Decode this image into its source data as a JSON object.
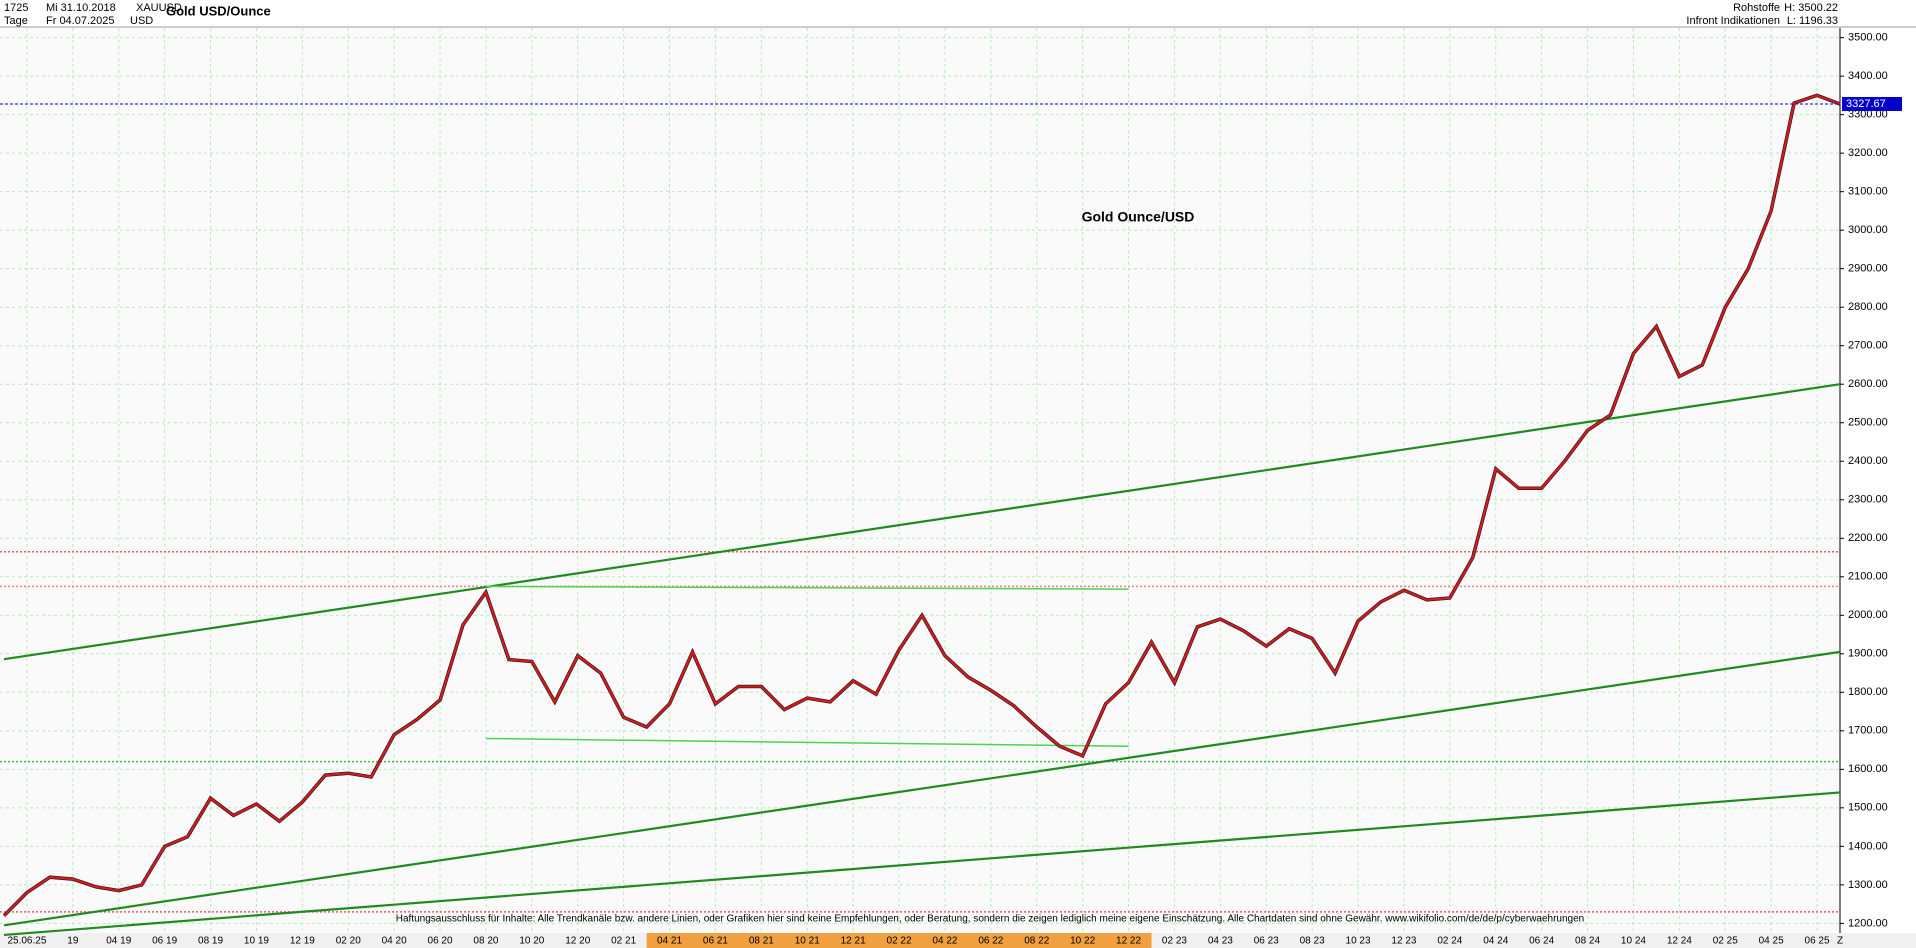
{
  "header": {
    "count": "1725",
    "start_date": "Mi 31.10.2018",
    "symbol": "XAUUSD",
    "name": "Gold USD/Ounce",
    "period": "Tage",
    "end_date": "Fr 04.07.2025",
    "currency": "USD",
    "group": "Rohstoffe",
    "source": "Infront Indikationen",
    "high": "H: 3500.22",
    "low": "L: 1196.33"
  },
  "chart_data": {
    "type": "line",
    "annotation": "Gold Ounce/USD",
    "disclaimer": "Haftungsausschluss für Inhalte: Alle Trendkanäle bzw. andere Linien, oder Grafiken hier sind keine Empfehlungen, oder Beratung, sondern die zeigen lediglich meine eigene Einschätzung. Alle Chartdaten sind ohne Gewähr. www.wikifolio.com/de/de/p/cyberwaehrungen",
    "categories": [
      null,
      "25.06.25",
      null,
      "19",
      null,
      "04 19",
      null,
      "06 19",
      null,
      "08 19",
      null,
      "10 19",
      null,
      "12 19",
      null,
      "02 20",
      null,
      "04 20",
      null,
      "06 20",
      null,
      "08 20",
      null,
      "10 20",
      null,
      "12 20",
      null,
      "02 21",
      null,
      "04 21",
      null,
      "06 21",
      null,
      "08 21",
      null,
      "10 21",
      null,
      "12 21",
      null,
      "02 22",
      null,
      "04 22",
      null,
      "06 22",
      null,
      "08 22",
      null,
      "10 22",
      null,
      "12 22",
      null,
      "02 23",
      null,
      "04 23",
      null,
      "06 23",
      null,
      "08 23",
      null,
      "10 23",
      null,
      "12 23",
      null,
      "02 24",
      null,
      "04 24",
      null,
      "06 24",
      null,
      "08 24",
      null,
      "10 24",
      null,
      "12 24",
      null,
      "02 25",
      null,
      "04 25",
      null,
      "06 25",
      "Z"
    ],
    "series": [
      {
        "name": "XAUUSD",
        "color": "#e8141c",
        "values": [
          1220,
          1280,
          1320,
          1315,
          1295,
          1285,
          1300,
          1400,
          1425,
          1525,
          1480,
          1510,
          1465,
          1515,
          1585,
          1590,
          1580,
          1690,
          1730,
          1780,
          1975,
          2060,
          1885,
          1880,
          1775,
          1895,
          1850,
          1735,
          1710,
          1770,
          1905,
          1770,
          1815,
          1815,
          1755,
          1785,
          1775,
          1830,
          1795,
          1910,
          2000,
          1895,
          1840,
          1805,
          1765,
          1710,
          1660,
          1635,
          1770,
          1825,
          1930,
          1825,
          1970,
          1990,
          1960,
          1920,
          1965,
          1940,
          1850,
          1985,
          2035,
          2065,
          2040,
          2045,
          2150,
          2380,
          2330,
          2330,
          2400,
          2480,
          2520,
          2680,
          2750,
          2620,
          2650,
          2800,
          2900,
          3050,
          3330,
          3350,
          3327.67
        ]
      }
    ],
    "trendlines": [
      {
        "start": 1886,
        "end": 2600,
        "color": "#1f8a1f"
      },
      {
        "start": 1195,
        "end": 1905,
        "color": "#1f8a1f"
      },
      {
        "start": 1170,
        "end": 1540,
        "color": "#1f8a1f"
      }
    ],
    "levels": [
      {
        "from": "08 20",
        "to": "12 22",
        "start": 2075,
        "end": 2068,
        "color": "#4cd44c"
      },
      {
        "from": "08 20",
        "to": "12 22",
        "start": 1680,
        "end": 1660,
        "color": "#4cd44c"
      }
    ],
    "hlines": [
      {
        "value": 2165,
        "color": "#e06060"
      },
      {
        "value": 2075,
        "color": "#f08080"
      },
      {
        "value": 1620,
        "color": "#40c040"
      },
      {
        "value": 1230,
        "color": "#e06060"
      }
    ],
    "current": {
      "value": 3327.67,
      "label": "3327.67",
      "color": "#0000cc"
    },
    "ylim": [
      1175,
      3525
    ],
    "yticks": [
      {
        "value": 1200,
        "label": "1200.00"
      },
      {
        "value": 1300,
        "label": "1300.00"
      },
      {
        "value": 1400,
        "label": "1400.00"
      },
      {
        "value": 1500,
        "label": "1500.00"
      },
      {
        "value": 1600,
        "label": "1600.00"
      },
      {
        "value": 1700,
        "label": "1700.00"
      },
      {
        "value": 1800,
        "label": "1800.00"
      },
      {
        "value": 1900,
        "label": "1900.00"
      },
      {
        "value": 2000,
        "label": "2000.00"
      },
      {
        "value": 2100,
        "label": "2100.00"
      },
      {
        "value": 2200,
        "label": "2200.00"
      },
      {
        "value": 2300,
        "label": "2300.00"
      },
      {
        "value": 2400,
        "label": "2400.00"
      },
      {
        "value": 2500,
        "label": "2500.00"
      },
      {
        "value": 2600,
        "label": "2600.00"
      },
      {
        "value": 2700,
        "label": "2700.00"
      },
      {
        "value": 2800,
        "label": "2800.00"
      },
      {
        "value": 2900,
        "label": "2900.00"
      },
      {
        "value": 3000,
        "label": "3000.00"
      },
      {
        "value": 3100,
        "label": "3100.00"
      },
      {
        "value": 3200,
        "label": "3200.00"
      },
      {
        "value": 3300,
        "label": "3300.00"
      },
      {
        "value": 3400,
        "label": "3400.00"
      },
      {
        "value": 3500,
        "label": "3500.00"
      }
    ],
    "grid": true
  }
}
